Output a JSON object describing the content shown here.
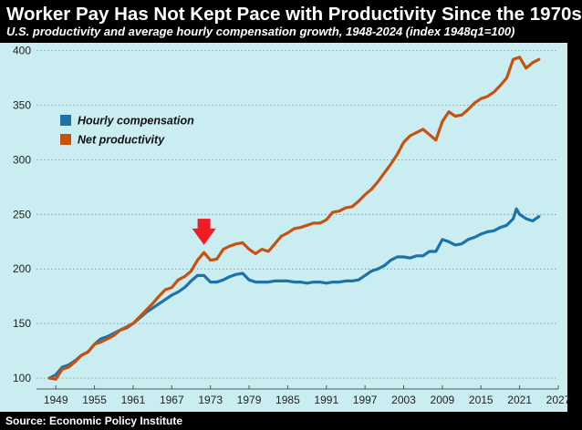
{
  "header": {
    "title": "Worker Pay Has Not Kept Pace with Productivity Since the 1970s",
    "subtitle": "U.S. productivity and average hourly compensation growth, 1948-2024 (index 1948q1=100)"
  },
  "footer": {
    "source": "Source: Economic Policy Institute"
  },
  "colors": {
    "background": "#c9edf0",
    "frame": "#000000",
    "compensation": "#1d72aa",
    "productivity": "#c7520f",
    "annotation_arrow": "#ee1c24",
    "gridline": "#8a8a8a"
  },
  "chart_data": {
    "type": "line",
    "title": "Worker Pay Has Not Kept Pace with Productivity Since the 1970s",
    "subtitle": "U.S. productivity and average hourly compensation growth, 1948-2024 (index 1948q1=100)",
    "xlabel": "",
    "ylabel": "",
    "xlim": [
      1946,
      2027
    ],
    "ylim": [
      90,
      403
    ],
    "xticks": [
      1949,
      1955,
      1961,
      1967,
      1973,
      1979,
      1985,
      1991,
      1997,
      2003,
      2009,
      2015,
      2021,
      2027
    ],
    "xtick_labels": [
      "1949",
      "1955",
      "1961",
      "1967",
      "1973",
      "1979",
      "1985",
      "1991",
      "1997",
      "2003",
      "2009",
      "2015",
      "2021",
      "2027"
    ],
    "yticks": [
      100,
      150,
      200,
      250,
      300,
      350,
      400
    ],
    "ytick_labels": [
      "100",
      "150",
      "200",
      "250",
      "300",
      "350",
      "400"
    ],
    "grid": {
      "y": true,
      "x": false
    },
    "legend": {
      "position": "upper-left"
    },
    "annotation": {
      "type": "arrow",
      "x": 1972,
      "y_tip": 222,
      "y_tail": 246,
      "label": "divergence point"
    },
    "series": [
      {
        "name": "Hourly compensation",
        "color": "#1d72aa",
        "x": [
          1948,
          1949,
          1950,
          1951,
          1952,
          1953,
          1954,
          1955,
          1956,
          1957,
          1958,
          1959,
          1960,
          1961,
          1962,
          1963,
          1964,
          1965,
          1966,
          1967,
          1968,
          1969,
          1970,
          1971,
          1972,
          1973,
          1974,
          1975,
          1976,
          1977,
          1978,
          1979,
          1980,
          1981,
          1982,
          1983,
          1984,
          1985,
          1986,
          1987,
          1988,
          1989,
          1990,
          1991,
          1992,
          1993,
          1994,
          1995,
          1996,
          1997,
          1998,
          1999,
          2000,
          2001,
          2002,
          2003,
          2004,
          2005,
          2006,
          2007,
          2008,
          2009,
          2010,
          2011,
          2012,
          2013,
          2014,
          2015,
          2016,
          2017,
          2018,
          2019,
          2020,
          2020.5,
          2021,
          2022,
          2023,
          2024
        ],
        "values": [
          100,
          103,
          110,
          112,
          116,
          121,
          124,
          131,
          136,
          138,
          141,
          144,
          146,
          150,
          155,
          160,
          164,
          168,
          172,
          176,
          179,
          183,
          189,
          194,
          194,
          188,
          188,
          190,
          193,
          195,
          196,
          190,
          188,
          188,
          188,
          189,
          189,
          189,
          188,
          188,
          187,
          188,
          188,
          187,
          188,
          188,
          189,
          189,
          190,
          194,
          198,
          200,
          203,
          208,
          211,
          211,
          210,
          212,
          212,
          216,
          216,
          227,
          225,
          222,
          223,
          227,
          229,
          232,
          234,
          235,
          238,
          240,
          246,
          255,
          250,
          246,
          244,
          248
        ]
      },
      {
        "name": "Net productivity",
        "color": "#c7520f",
        "x": [
          1948,
          1949,
          1950,
          1951,
          1952,
          1953,
          1954,
          1955,
          1956,
          1957,
          1958,
          1959,
          1960,
          1961,
          1962,
          1963,
          1964,
          1965,
          1966,
          1967,
          1968,
          1969,
          1970,
          1971,
          1972,
          1973,
          1974,
          1975,
          1976,
          1977,
          1978,
          1979,
          1980,
          1981,
          1982,
          1983,
          1984,
          1985,
          1986,
          1987,
          1988,
          1989,
          1990,
          1991,
          1992,
          1993,
          1994,
          1995,
          1996,
          1997,
          1998,
          1999,
          2000,
          2001,
          2002,
          2003,
          2004,
          2005,
          2006,
          2007,
          2008,
          2009,
          2010,
          2011,
          2012,
          2013,
          2014,
          2015,
          2016,
          2017,
          2018,
          2019,
          2020,
          2021,
          2022,
          2023,
          2024
        ],
        "values": [
          100,
          99,
          108,
          110,
          115,
          121,
          124,
          131,
          133,
          136,
          139,
          144,
          147,
          150,
          156,
          162,
          168,
          175,
          181,
          183,
          190,
          193,
          198,
          208,
          215,
          208,
          209,
          218,
          221,
          223,
          224,
          218,
          214,
          218,
          216,
          223,
          230,
          233,
          237,
          238,
          240,
          242,
          242,
          245,
          252,
          253,
          256,
          257,
          262,
          268,
          273,
          280,
          288,
          296,
          305,
          316,
          322,
          325,
          328,
          323,
          318,
          335,
          344,
          340,
          341,
          346,
          352,
          356,
          358,
          362,
          368,
          375,
          392,
          394,
          384,
          389,
          392
        ]
      }
    ]
  }
}
